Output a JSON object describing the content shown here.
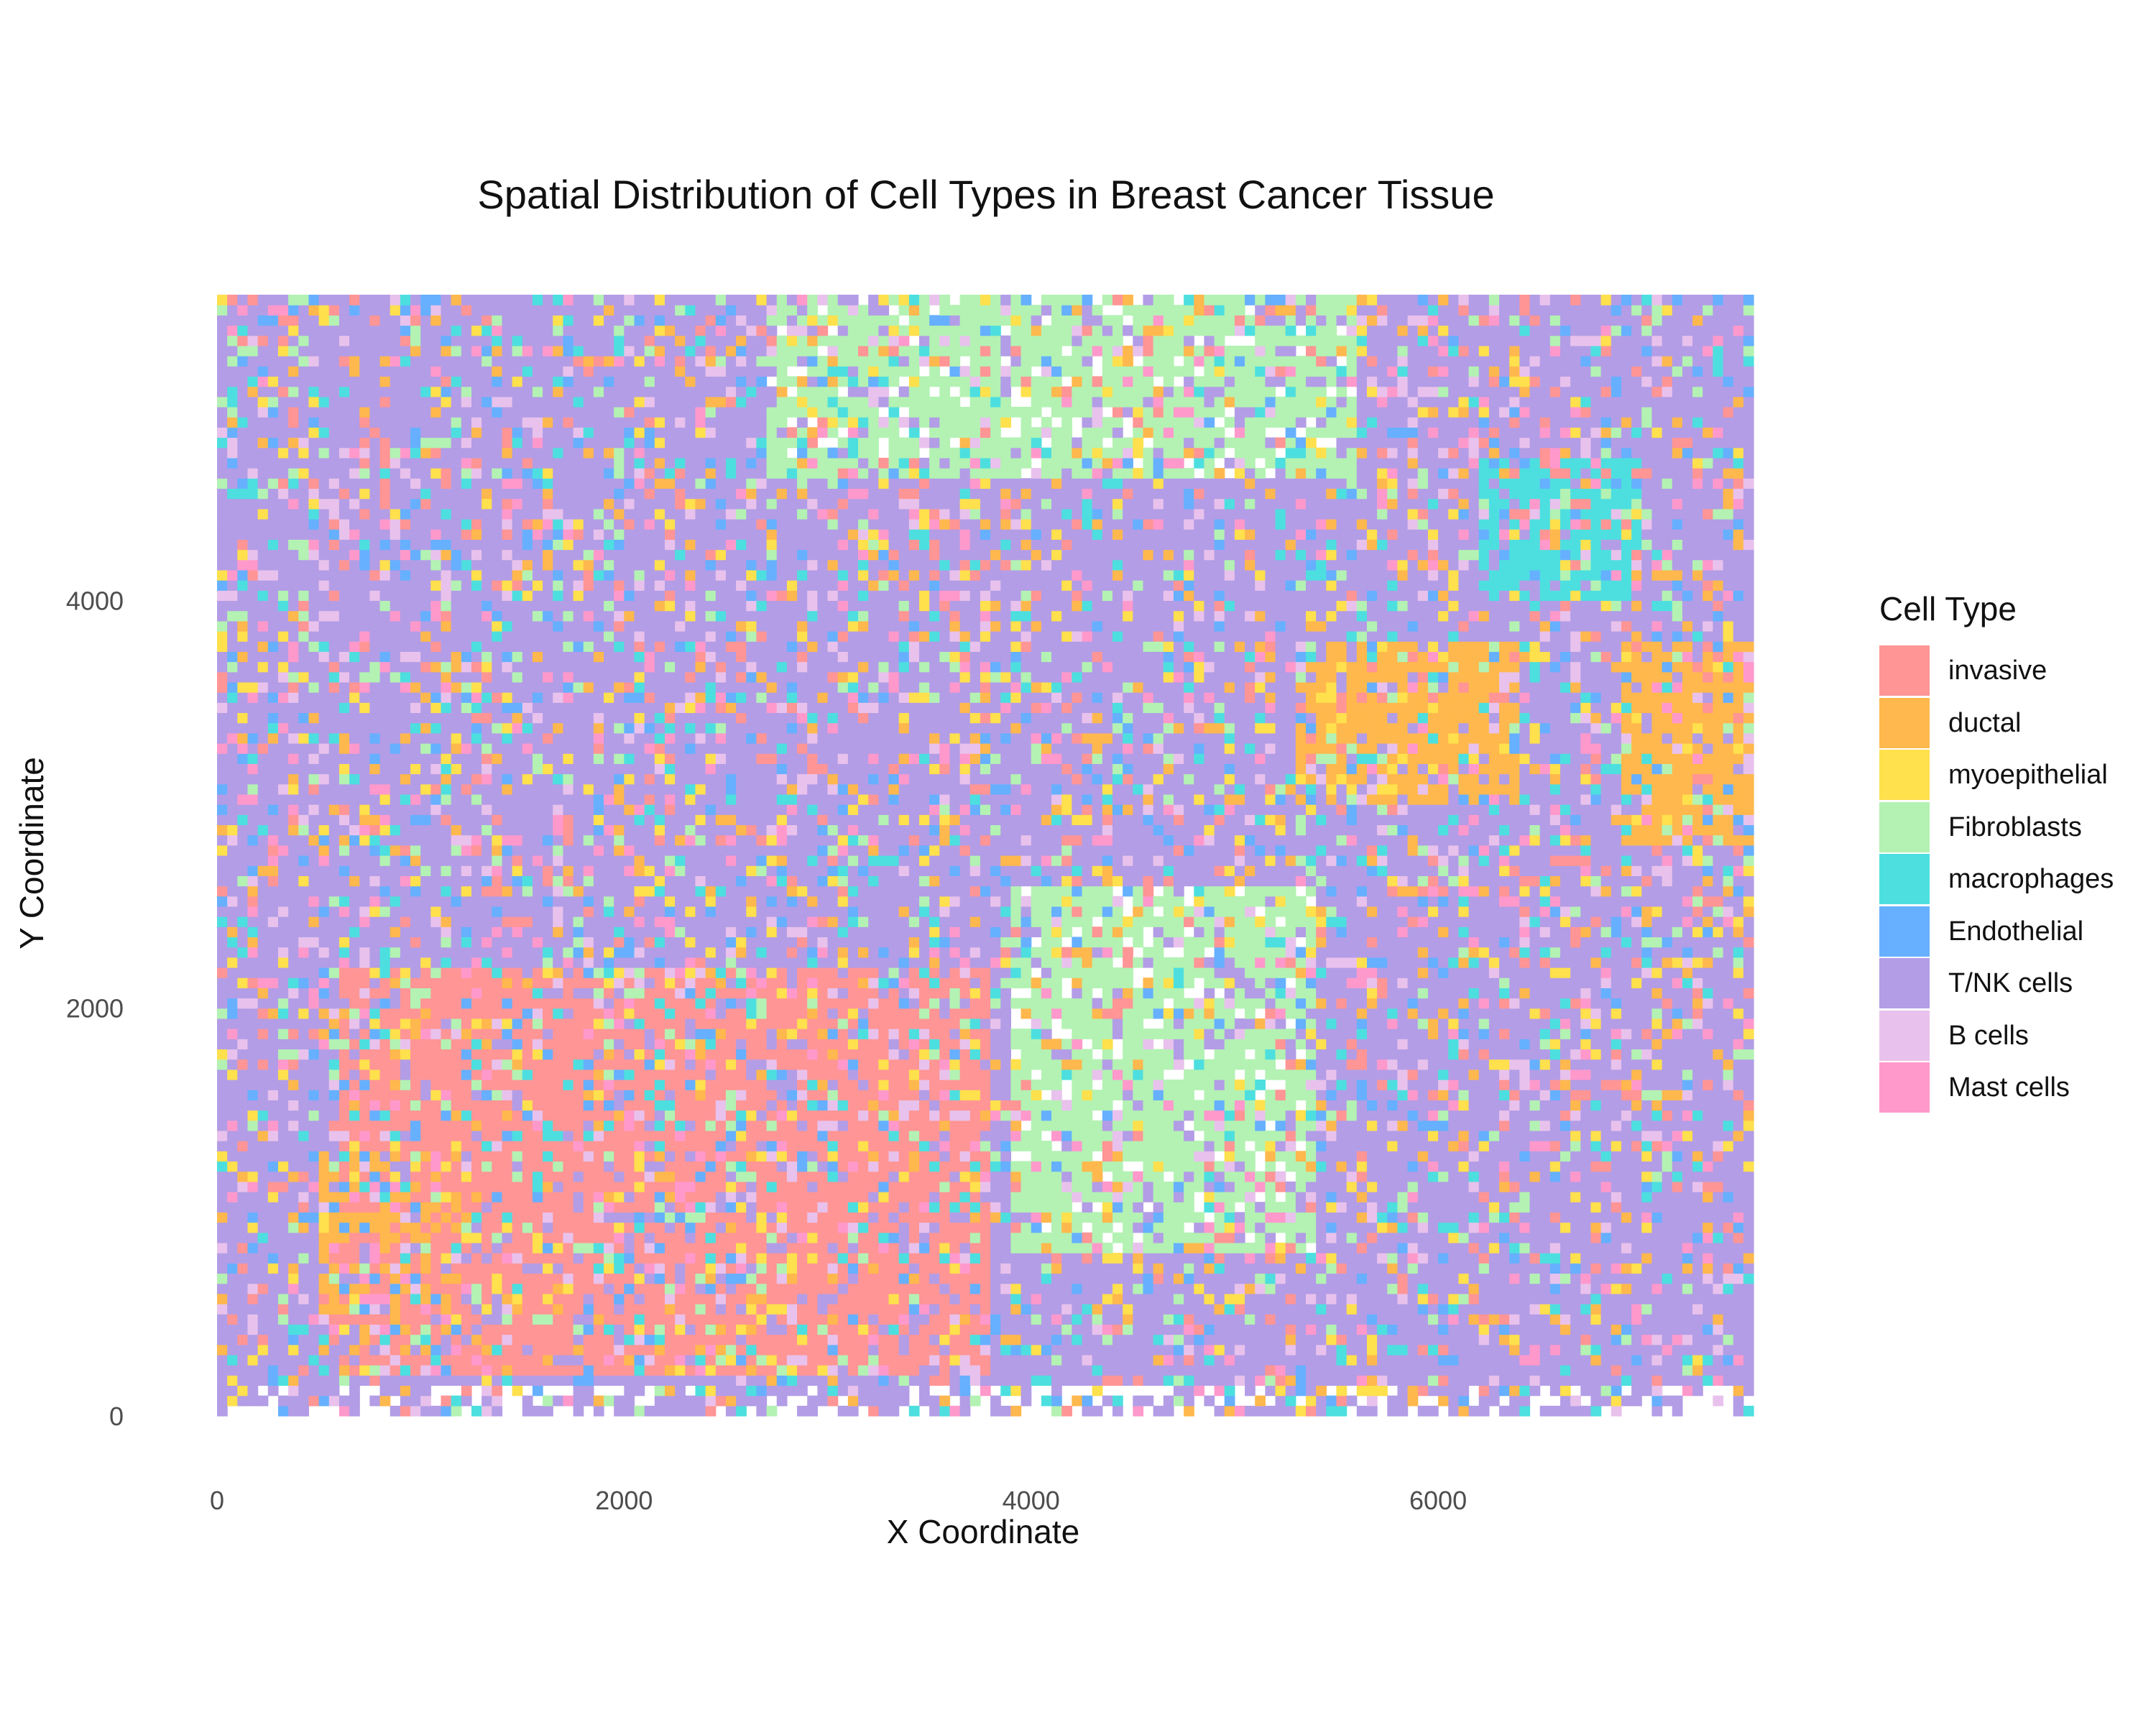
{
  "chart_data": {
    "type": "heatmap",
    "title": "Spatial Distribution of Cell Types in Breast Cancer Tissue",
    "xlabel": "X Coordinate",
    "ylabel": "Y Coordinate",
    "xlim": [
      0,
      7550
    ],
    "ylim": [
      0,
      5500
    ],
    "x_ticks": [
      "0",
      "2000",
      "4000",
      "6000"
    ],
    "y_ticks": [
      "0",
      "2000",
      "4000"
    ],
    "grid": false,
    "legend_position": "right",
    "legend_title": "Cell Type",
    "categories": [
      {
        "name": "invasive",
        "color": "#FF9595"
      },
      {
        "name": "ductal",
        "color": "#FFB84D"
      },
      {
        "name": "myoepithelial",
        "color": "#FFE04D"
      },
      {
        "name": "Fibroblasts",
        "color": "#B3F2B3"
      },
      {
        "name": "macrophages",
        "color": "#4DDFDF"
      },
      {
        "name": "Endothelial",
        "color": "#66B0FF"
      },
      {
        "name": "T/NK cells",
        "color": "#B39DE6"
      },
      {
        "name": "B cells",
        "color": "#E8C2EC"
      },
      {
        "name": "Mast cells",
        "color": "#FF99CC"
      }
    ],
    "dominant_regions": [
      {
        "cell_type": "Fibroblasts",
        "x": [
          2700,
          5600
        ],
        "y": [
          4600,
          5500
        ]
      },
      {
        "cell_type": "Fibroblasts",
        "x": [
          3900,
          5400
        ],
        "y": [
          800,
          2600
        ]
      },
      {
        "cell_type": "T/NK cells",
        "x": [
          0,
          1100
        ],
        "y": [
          3800,
          5500
        ]
      },
      {
        "cell_type": "T/NK cells",
        "x": [
          1500,
          3900
        ],
        "y": [
          2300,
          3700
        ]
      },
      {
        "cell_type": "invasive",
        "x": [
          600,
          3800
        ],
        "y": [
          200,
          2200
        ]
      },
      {
        "cell_type": "ductal",
        "x": [
          5300,
          6400
        ],
        "y": [
          3000,
          3800
        ]
      },
      {
        "cell_type": "ductal",
        "x": [
          6900,
          7550
        ],
        "y": [
          2800,
          3800
        ]
      },
      {
        "cell_type": "ductal",
        "x": [
          500,
          1200
        ],
        "y": [
          300,
          1300
        ]
      },
      {
        "cell_type": "macrophages",
        "x": [
          6200,
          7000
        ],
        "y": [
          4000,
          4700
        ]
      }
    ]
  }
}
